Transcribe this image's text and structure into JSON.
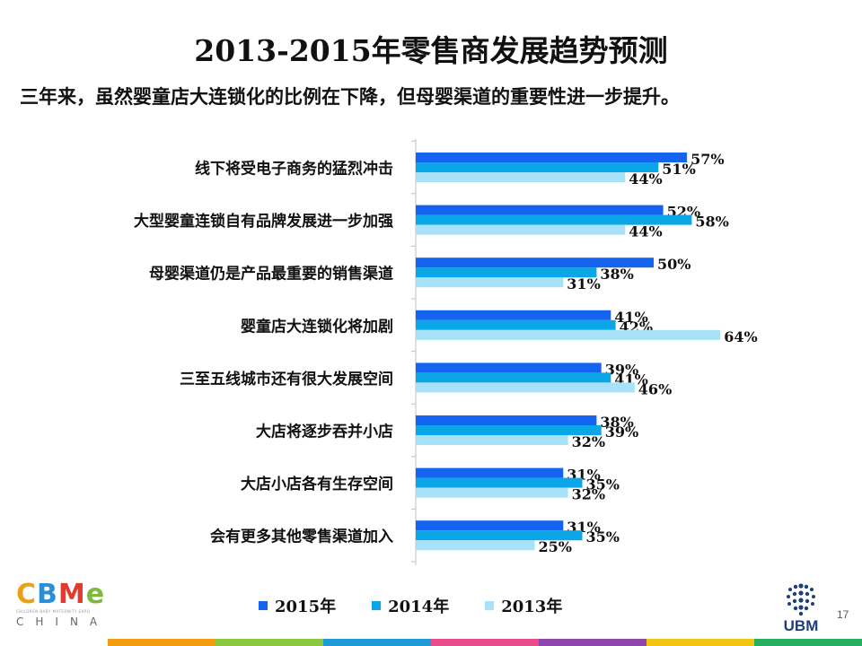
{
  "title": "2013-2015年零售商发展趋势预测",
  "subtitle": "三年来，虽然婴童店大连锁化的比例在下降，但母婴渠道的重要性进一步提升。",
  "chart_data": {
    "type": "bar",
    "orientation": "horizontal",
    "categories": [
      "线下将受电子商务的猛烈冲击",
      "大型婴童连锁自有品牌发展进一步加强",
      "母婴渠道仍是产品最重要的销售渠道",
      "婴童店大连锁化将加剧",
      "三至五线城市还有很大发展空间",
      "大店将逐步吞并小店",
      "大店小店各有生存空间",
      "会有更多其他零售渠道加入"
    ],
    "series": [
      {
        "name": "2015年",
        "color": "#1464f0",
        "values": [
          57,
          52,
          50,
          41,
          39,
          38,
          31,
          31
        ],
        "labels": [
          "57%",
          "52%",
          "50%",
          "41%",
          "39%",
          "38%",
          "31%",
          "31%"
        ]
      },
      {
        "name": "2014年",
        "color": "#0aa6e8",
        "values": [
          51,
          58,
          38,
          42,
          41,
          39,
          35,
          35
        ],
        "labels": [
          "51%",
          "58%",
          "38%",
          "42%",
          "41%",
          "39%",
          "35%",
          "35%"
        ]
      },
      {
        "name": "2013年",
        "color": "#a8e2f8",
        "values": [
          44,
          44,
          31,
          64,
          46,
          32,
          32,
          25
        ],
        "labels": [
          "44%",
          "44%",
          "31%",
          "64%",
          "46%",
          "32%",
          "32%",
          "25%"
        ]
      }
    ],
    "xlim": [
      0,
      100
    ],
    "legend_position": "bottom",
    "grid": false
  },
  "logos": {
    "cbme": {
      "letters": [
        "C",
        "B",
        "M",
        "e"
      ],
      "letter_colors": [
        "#e8a21a",
        "#2b8fd6",
        "#e23a2e",
        "#7cba3b"
      ],
      "tagline": "CHILDREN BABY MATERNITY EXPO",
      "region": "CHINA"
    },
    "ubm": {
      "text": "UBM",
      "color": "#1f3f7a"
    }
  },
  "page_number": "17",
  "footer_strip_colors": [
    "#f39c12",
    "#8cc63f",
    "#1e9bd7",
    "#e84c8b",
    "#8e44ad",
    "#f1c40f",
    "#27ae60"
  ]
}
